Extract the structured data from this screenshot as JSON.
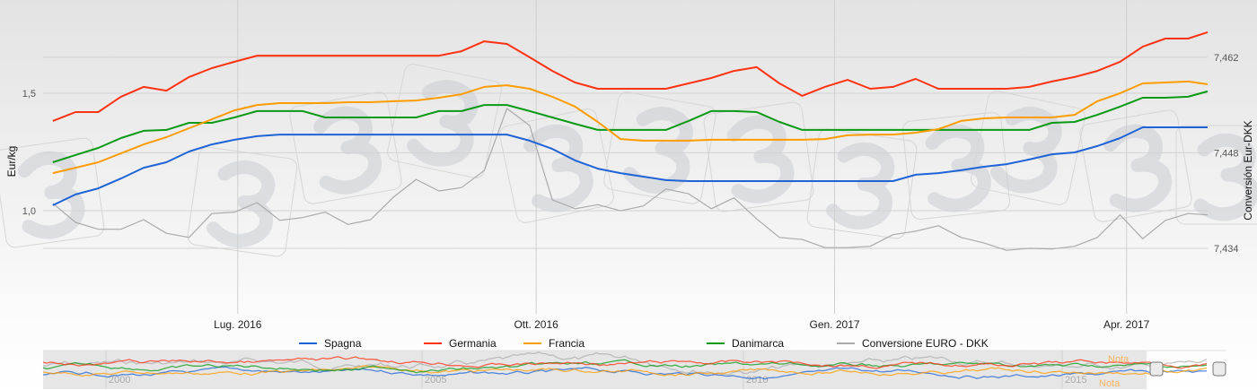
{
  "chart_data": {
    "type": "line",
    "title": "",
    "x": [
      "2016-05-05",
      "2016-05-12",
      "2016-05-19",
      "2016-05-26",
      "2016-06-02",
      "2016-06-09",
      "2016-06-16",
      "2016-06-23",
      "2016-06-30",
      "2016-07-07",
      "2016-07-14",
      "2016-07-21",
      "2016-07-28",
      "2016-08-04",
      "2016-08-11",
      "2016-08-18",
      "2016-08-25",
      "2016-09-01",
      "2016-09-08",
      "2016-09-15",
      "2016-09-22",
      "2016-09-29",
      "2016-10-06",
      "2016-10-13",
      "2016-10-20",
      "2016-10-27",
      "2016-11-03",
      "2016-11-10",
      "2016-11-17",
      "2016-11-24",
      "2016-12-01",
      "2016-12-08",
      "2016-12-15",
      "2016-12-22",
      "2016-12-29",
      "2017-01-05",
      "2017-01-12",
      "2017-01-19",
      "2017-01-26",
      "2017-02-02",
      "2017-02-09",
      "2017-02-16",
      "2017-02-23",
      "2017-03-02",
      "2017-03-09",
      "2017-03-16",
      "2017-03-23",
      "2017-03-30",
      "2017-04-06",
      "2017-04-13",
      "2017-04-20",
      "2017-04-27"
    ],
    "x_range": [
      "2016-05-02",
      "2017-04-26"
    ],
    "x_ticks": [
      {
        "date": "2016-07-01",
        "label": "Lug. 2016"
      },
      {
        "date": "2016-10-01",
        "label": "Ott. 2016"
      },
      {
        "date": "2017-01-01",
        "label": "Gen. 2017"
      },
      {
        "date": "2017-04-01",
        "label": "Apr. 2017"
      }
    ],
    "y_left": {
      "label": "Eur/kg",
      "ticks": [
        {
          "value": 1.0,
          "label": "1,0"
        },
        {
          "value": 1.5,
          "label": "1,5"
        }
      ],
      "range": [
        0.561,
        1.897
      ]
    },
    "y_right": {
      "label": "Conversión Eur-DKK",
      "ticks": [
        {
          "value": 7.434,
          "label": "7,434"
        },
        {
          "value": 7.448,
          "label": "7,448"
        },
        {
          "value": 7.462,
          "label": "7,462"
        }
      ],
      "range": [
        7.4244,
        7.4704
      ]
    },
    "grid": true,
    "legend_position": "bottom",
    "series": [
      {
        "name": "Spagna",
        "axis": "left",
        "color": "#1f64d6",
        "values": [
          1.023,
          1.069,
          1.095,
          1.137,
          1.183,
          1.206,
          1.252,
          1.282,
          1.302,
          1.317,
          1.324,
          1.324,
          1.324,
          1.324,
          1.324,
          1.324,
          1.324,
          1.324,
          1.324,
          1.324,
          1.324,
          1.298,
          1.263,
          1.214,
          1.179,
          1.16,
          1.145,
          1.13,
          1.126,
          1.126,
          1.126,
          1.126,
          1.126,
          1.126,
          1.126,
          1.126,
          1.126,
          1.126,
          1.153,
          1.16,
          1.172,
          1.187,
          1.198,
          1.218,
          1.24,
          1.248,
          1.275,
          1.309,
          1.355,
          1.355,
          1.355,
          1.355
        ]
      },
      {
        "name": "Germania",
        "axis": "left",
        "color": "#ff3312",
        "values": [
          1.382,
          1.42,
          1.42,
          1.485,
          1.527,
          1.511,
          1.569,
          1.607,
          1.634,
          1.66,
          1.66,
          1.66,
          1.66,
          1.66,
          1.66,
          1.66,
          1.66,
          1.66,
          1.679,
          1.721,
          1.71,
          1.653,
          1.595,
          1.546,
          1.519,
          1.519,
          1.519,
          1.519,
          1.542,
          1.565,
          1.595,
          1.611,
          1.542,
          1.489,
          1.527,
          1.557,
          1.519,
          1.527,
          1.561,
          1.519,
          1.519,
          1.519,
          1.519,
          1.527,
          1.55,
          1.569,
          1.595,
          1.634,
          1.698,
          1.733,
          1.733,
          1.76
        ]
      },
      {
        "name": "Francia",
        "axis": "left",
        "color": "#ff9c00",
        "values": [
          1.16,
          1.183,
          1.206,
          1.244,
          1.282,
          1.313,
          1.351,
          1.389,
          1.427,
          1.45,
          1.458,
          1.458,
          1.458,
          1.462,
          1.462,
          1.466,
          1.469,
          1.481,
          1.496,
          1.527,
          1.534,
          1.519,
          1.485,
          1.443,
          1.378,
          1.305,
          1.298,
          1.298,
          1.298,
          1.302,
          1.302,
          1.302,
          1.302,
          1.302,
          1.305,
          1.321,
          1.324,
          1.324,
          1.332,
          1.347,
          1.382,
          1.393,
          1.397,
          1.397,
          1.397,
          1.408,
          1.466,
          1.5,
          1.542,
          1.546,
          1.55,
          1.538
        ]
      },
      {
        "name": "Danimarca",
        "axis": "left",
        "color": "#0a9a16",
        "values": [
          1.206,
          1.237,
          1.267,
          1.309,
          1.34,
          1.344,
          1.374,
          1.374,
          1.397,
          1.424,
          1.424,
          1.424,
          1.397,
          1.397,
          1.397,
          1.397,
          1.397,
          1.424,
          1.424,
          1.45,
          1.45,
          1.424,
          1.397,
          1.37,
          1.344,
          1.344,
          1.344,
          1.344,
          1.382,
          1.424,
          1.424,
          1.42,
          1.378,
          1.344,
          1.344,
          1.344,
          1.344,
          1.344,
          1.344,
          1.344,
          1.344,
          1.344,
          1.344,
          1.344,
          1.374,
          1.378,
          1.408,
          1.443,
          1.481,
          1.481,
          1.485,
          1.508
        ]
      },
      {
        "name": "Conversione EURO - DKK",
        "axis": "right",
        "color": "#aaaaaa",
        "values": [
          7.4406,
          7.4378,
          7.4368,
          7.4368,
          7.4382,
          7.4362,
          7.4356,
          7.4391,
          7.4393,
          7.4407,
          7.4381,
          7.4385,
          7.4393,
          7.4375,
          7.4382,
          7.4415,
          7.4441,
          7.4424,
          7.4429,
          7.4454,
          7.4545,
          7.452,
          7.4411,
          7.4398,
          7.4404,
          7.4395,
          7.4402,
          7.4427,
          7.442,
          7.4398,
          7.4414,
          7.4383,
          7.4356,
          7.4353,
          7.4341,
          7.4341,
          7.4343,
          7.436,
          7.4365,
          7.4373,
          7.4356,
          7.4348,
          7.4337,
          7.434,
          7.4339,
          7.4343,
          7.4356,
          7.4389,
          7.4354,
          7.4381,
          7.4391,
          7.4389
        ]
      }
    ]
  },
  "navigator": {
    "year_labels": [
      "2000",
      "2005",
      "2010",
      "2015"
    ],
    "note_labels": [
      "Nota",
      "Nota"
    ]
  },
  "watermark": {
    "logo_text": "3"
  }
}
